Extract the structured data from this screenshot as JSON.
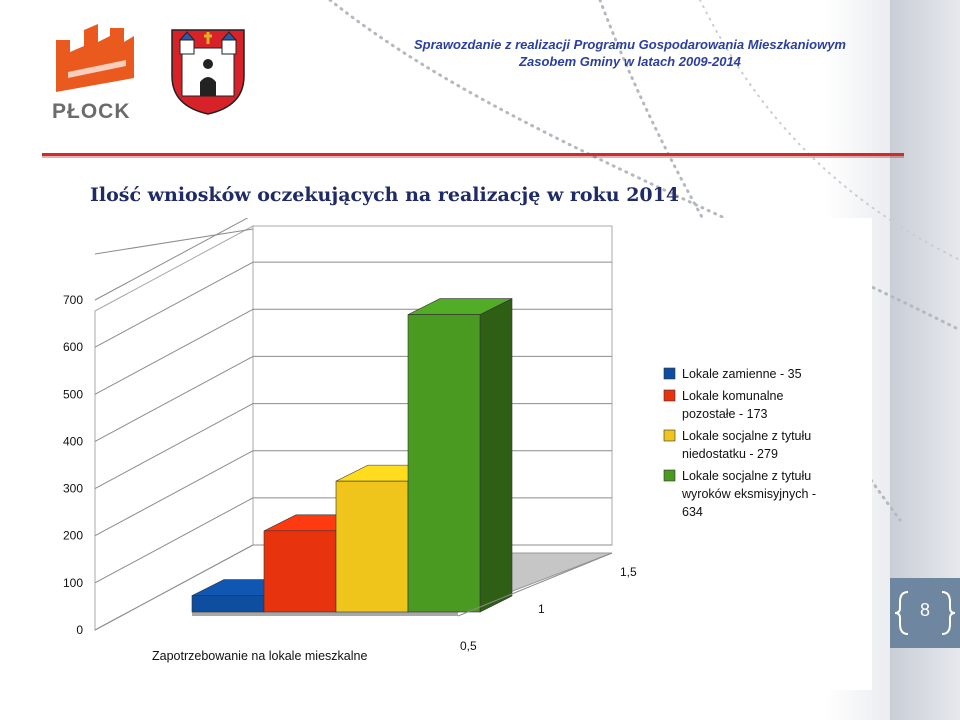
{
  "header": {
    "line1": "Sprawozdanie z realizacji Programu Gospodarowania Mieszkaniowym",
    "line2": "Zasobem Gminy w latach 2009-2014",
    "logo_text": "PŁOCK"
  },
  "slide": {
    "title": "Ilość wniosków oczekujących na realizację w roku 2014",
    "page_number": "8"
  },
  "colors": {
    "accent_line": "#d02b2b",
    "header_text": "#2b3f9e",
    "title_text": "#1f2a66"
  },
  "chart_data": {
    "type": "bar",
    "style": "3d",
    "xlabel": "Zapotrzebowanie na lokale mieszkalne",
    "ylabel": "",
    "ylim": [
      0,
      700
    ],
    "y_ticks": [
      "0",
      "100",
      "200",
      "300",
      "400",
      "500",
      "600",
      "700"
    ],
    "depth_ticks": [
      "0,5",
      "1",
      "1,5"
    ],
    "grid": true,
    "legend_position": "right",
    "series": [
      {
        "name": "Lokale zamienne - 35",
        "value": 35,
        "color": "#0d4ea0",
        "legend_lines": [
          "Lokale zamienne - 35"
        ]
      },
      {
        "name": "Lokale komunalne pozostałe - 173",
        "value": 173,
        "color": "#e8340e",
        "legend_lines": [
          "Lokale komunalne",
          "pozostałe - 173"
        ]
      },
      {
        "name": "Lokale socjalne z tytułu niedostatku - 279",
        "value": 279,
        "color": "#f0c51b",
        "legend_lines": [
          "Lokale socjalne z tytułu",
          "niedostatku - 279"
        ]
      },
      {
        "name": "Lokale socjalne z tytułu wyroków eksmisyjnych - 634",
        "value": 634,
        "color": "#4a9a22",
        "legend_lines": [
          "Lokale socjalne z tytułu",
          "wyroków eksmisyjnych -",
          "634"
        ]
      }
    ]
  }
}
